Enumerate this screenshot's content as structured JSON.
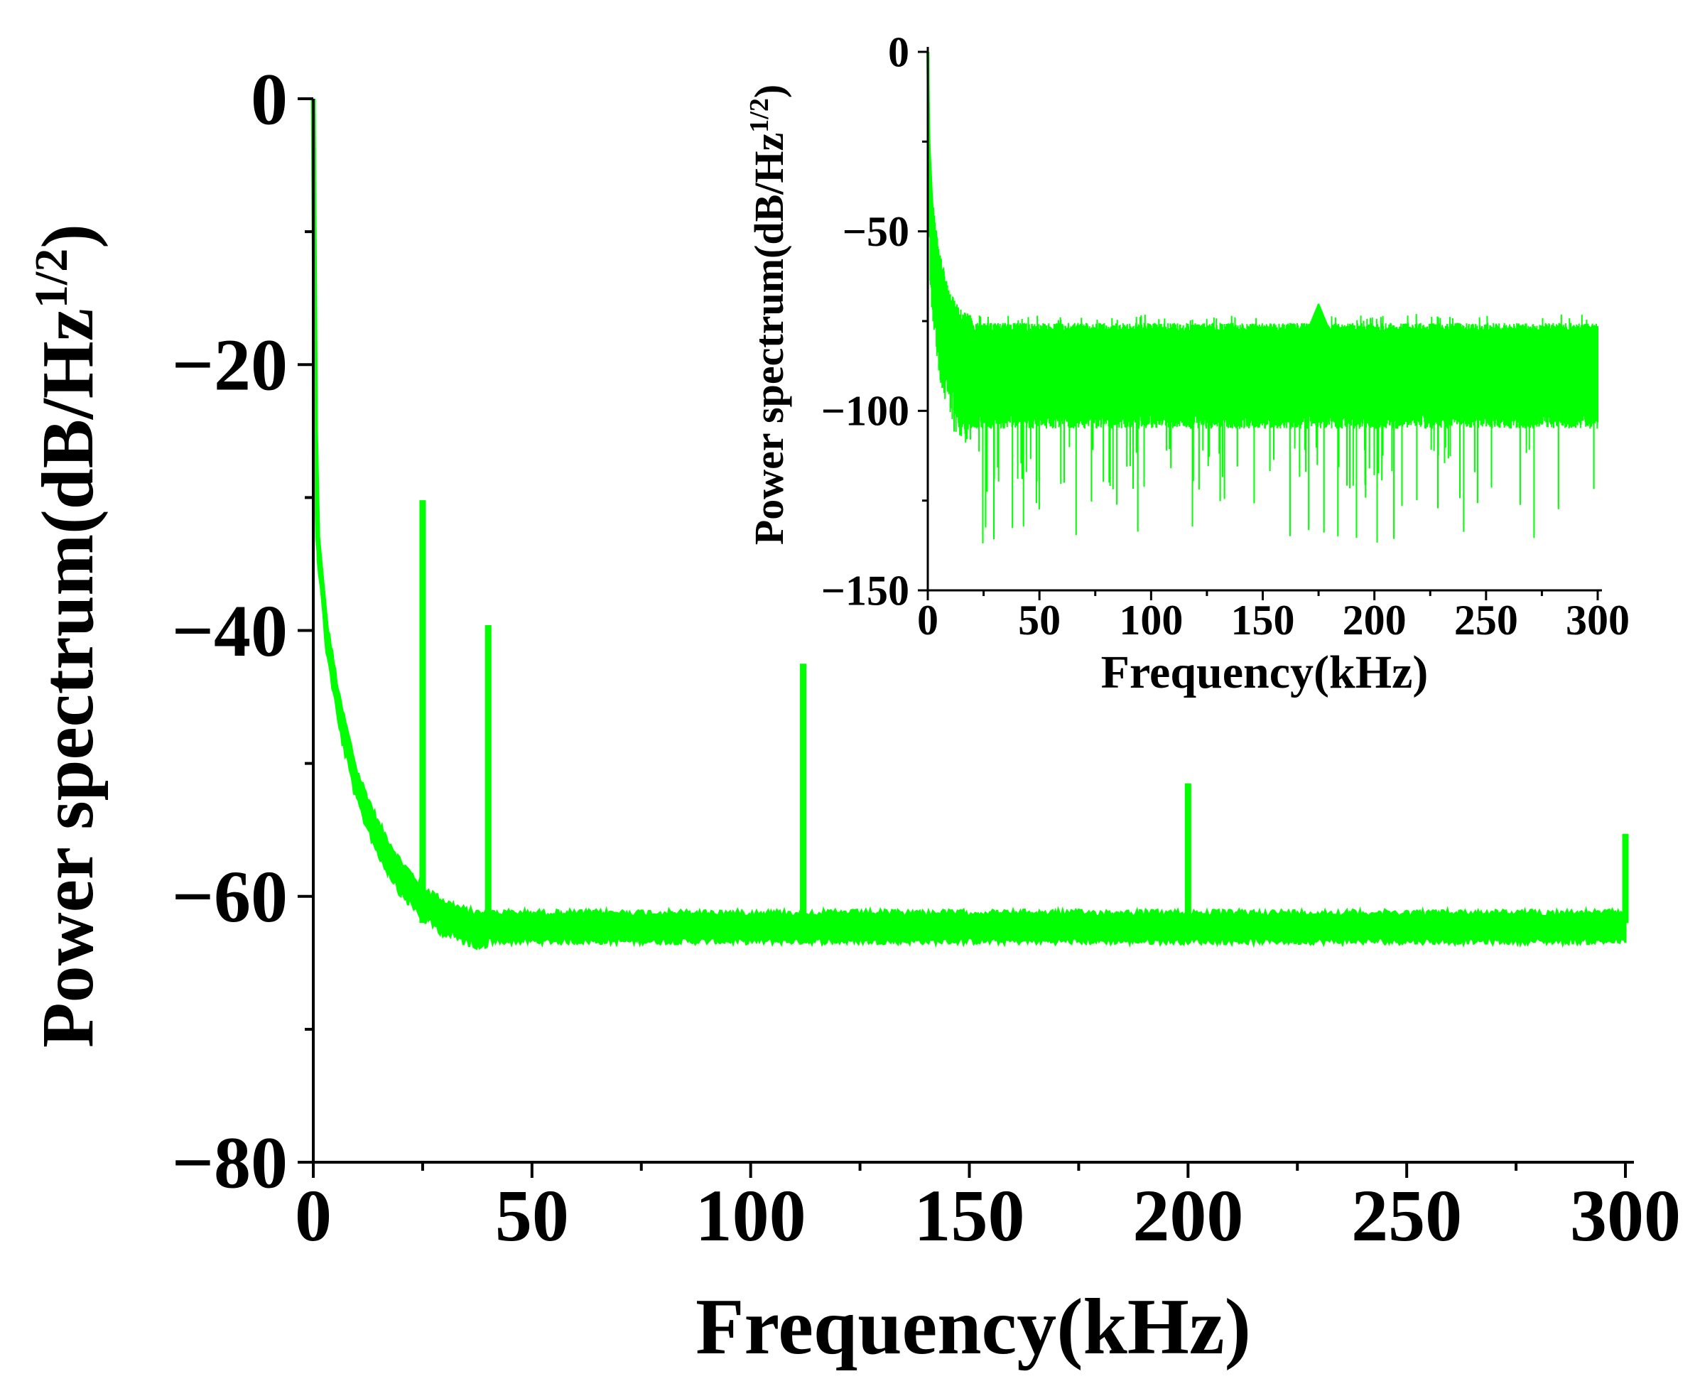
{
  "chart_data": [
    {
      "id": "main",
      "type": "line",
      "title": "",
      "xlabel": "Frequency(kHz)",
      "ylabel": "Power spectrum(dB/Hz",
      "ylabel_sup": "1/2",
      "ylabel_close": ")",
      "xlim": [
        0,
        305
      ],
      "ylim": [
        -80,
        0
      ],
      "xticks": [
        0,
        50,
        100,
        150,
        200,
        250,
        300
      ],
      "xtick_labels": [
        "0",
        "50",
        "100",
        "150",
        "200",
        "250",
        "300"
      ],
      "yticks": [
        0,
        -20,
        -40,
        -60,
        -80
      ],
      "ytick_labels": [
        "0",
        "−20",
        "−40",
        "−60",
        "−80"
      ],
      "color": "#00ff00",
      "series": [
        {
          "name": "power spectrum",
          "baseline_floor": -62.5,
          "noise_band_top": -61.0,
          "noise_band_bottom": -63.6,
          "decay_points": [
            [
              0,
              0
            ],
            [
              0.5,
              -25
            ],
            [
              1,
              -33
            ],
            [
              3,
              -40
            ],
            [
              6,
              -46
            ],
            [
              10,
              -51.5
            ],
            [
              15,
              -55.5
            ],
            [
              20,
              -58.3
            ],
            [
              25,
              -60.2
            ],
            [
              30,
              -61.3
            ],
            [
              35,
              -62
            ],
            [
              40,
              -62.3
            ]
          ],
          "peaks": [
            {
              "x": 25,
              "y": -30.2
            },
            {
              "x": 40,
              "y": -39.6
            },
            {
              "x": 112,
              "y": -42.5
            },
            {
              "x": 200,
              "y": -51.5
            },
            {
              "x": 300,
              "y": -55.3
            }
          ]
        }
      ]
    },
    {
      "id": "inset",
      "type": "line",
      "title": "",
      "xlabel": "Frequency(kHz)",
      "ylabel": "Power spectrum(dB/Hz",
      "ylabel_sup": "1/2",
      "ylabel_close": ")",
      "xlim": [
        0,
        305
      ],
      "ylim": [
        -150,
        0
      ],
      "xticks": [
        0,
        50,
        100,
        150,
        200,
        250,
        300
      ],
      "xtick_labels": [
        "0",
        "50",
        "100",
        "150",
        "200",
        "250",
        "300"
      ],
      "yticks": [
        0,
        -50,
        -100,
        -150
      ],
      "ytick_labels": [
        "0",
        "−50",
        "−100",
        "−150"
      ],
      "color": "#00ff00",
      "series": [
        {
          "name": "power spectrum (noise)",
          "decay_points": [
            [
              0,
              0
            ],
            [
              0.5,
              -25
            ],
            [
              2,
              -45
            ],
            [
              5,
              -60
            ],
            [
              10,
              -72
            ],
            [
              15,
              -77
            ],
            [
              20,
              -78
            ]
          ],
          "noise_band_top": -78.0,
          "noise_band_bottom": -105.0,
          "min_spike": -137,
          "bump": {
            "x": 175,
            "y": -70
          }
        }
      ]
    }
  ]
}
